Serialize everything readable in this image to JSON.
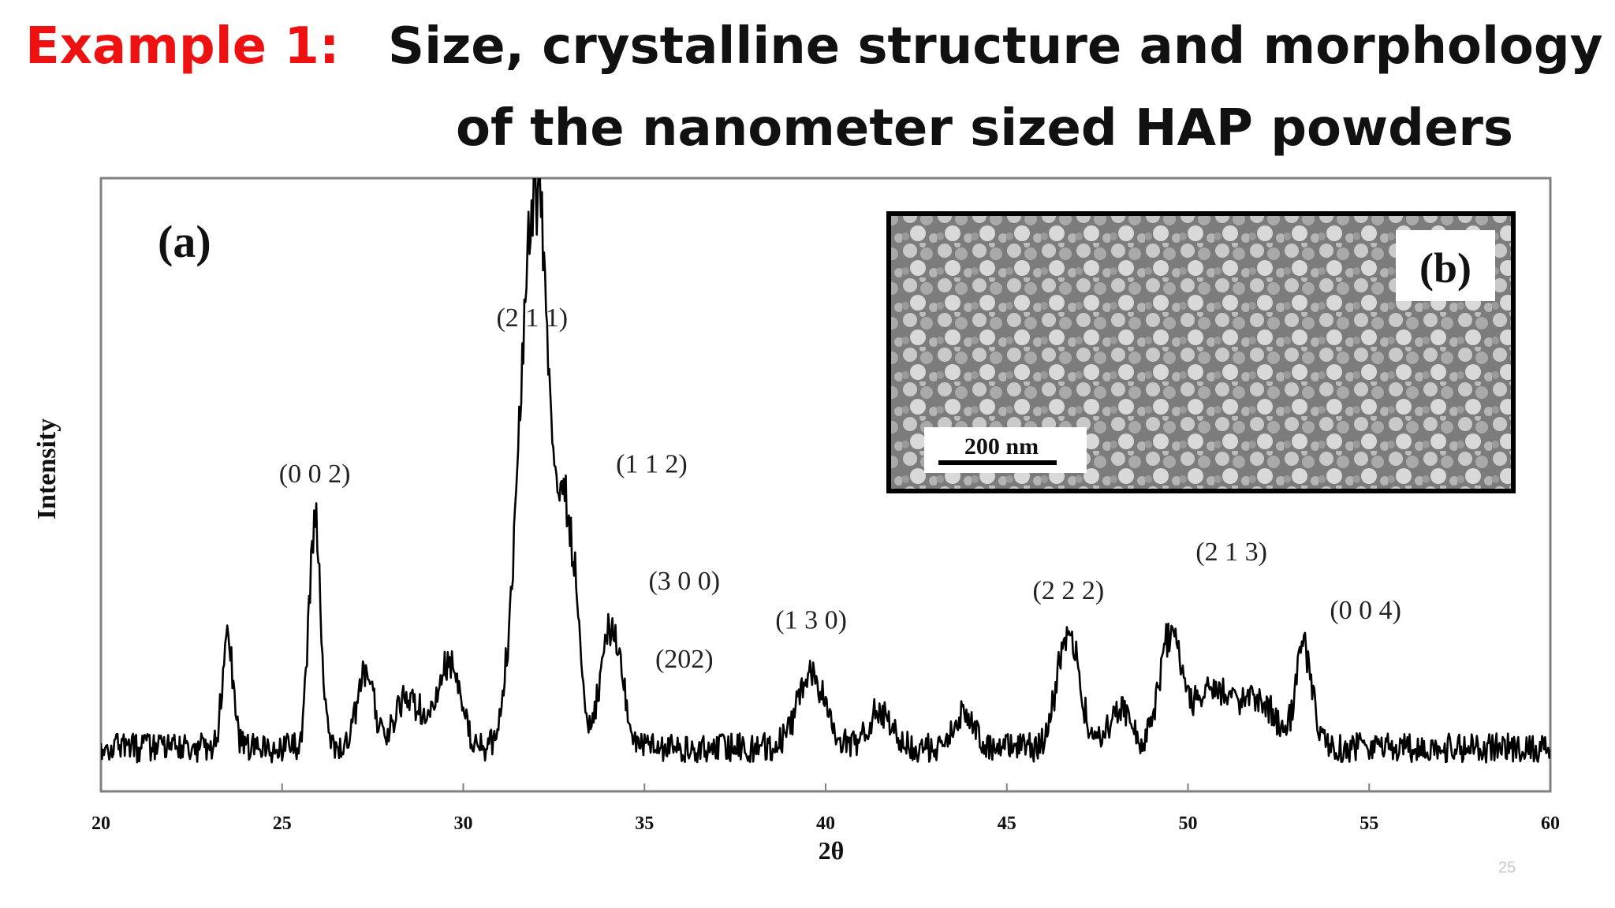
{
  "title": {
    "prefix": "Example 1:",
    "line1": "Size, crystalline structure and morphology",
    "line2": "of the nanometer sized HAP powders"
  },
  "colors": {
    "prefix": "#ee1111",
    "title": "#111111",
    "line": "#000000"
  },
  "slide_number": "25",
  "chart_data": {
    "type": "line",
    "panel_label": "(a)",
    "xlabel": "2θ",
    "ylabel": "Intensity",
    "xlim": [
      20,
      60
    ],
    "ylim": [
      0,
      100
    ],
    "x_ticks": [
      20,
      25,
      30,
      35,
      40,
      45,
      50,
      55,
      60
    ],
    "y_ticks": [],
    "grid": false,
    "baseline_noise": 3,
    "peaks": [
      {
        "x": 23.5,
        "height": 22,
        "width": 0.15
      },
      {
        "x": 25.9,
        "height": 47,
        "width": 0.16
      },
      {
        "x": 27.3,
        "height": 16,
        "width": 0.22
      },
      {
        "x": 28.5,
        "height": 10,
        "width": 0.4
      },
      {
        "x": 29.6,
        "height": 18,
        "width": 0.3
      },
      {
        "x": 31.8,
        "height": 80,
        "width": 0.35
      },
      {
        "x": 32.2,
        "height": 60,
        "width": 0.3
      },
      {
        "x": 32.9,
        "height": 45,
        "width": 0.25
      },
      {
        "x": 34.1,
        "height": 25,
        "width": 0.3
      },
      {
        "x": 39.6,
        "height": 14,
        "width": 0.4
      },
      {
        "x": 41.5,
        "height": 8,
        "width": 0.3
      },
      {
        "x": 43.8,
        "height": 7,
        "width": 0.3
      },
      {
        "x": 46.7,
        "height": 24,
        "width": 0.3
      },
      {
        "x": 48.1,
        "height": 8,
        "width": 0.3
      },
      {
        "x": 49.5,
        "height": 22,
        "width": 0.3
      },
      {
        "x": 50.5,
        "height": 9,
        "width": 0.5
      },
      {
        "x": 51.3,
        "height": 7,
        "width": 0.5
      },
      {
        "x": 52.1,
        "height": 7,
        "width": 0.4
      },
      {
        "x": 53.2,
        "height": 21,
        "width": 0.22
      }
    ],
    "annotations": [
      {
        "text": "(0 0 2)",
        "x": 25.9,
        "y": 56
      },
      {
        "text": "(2 1 1)",
        "x": 31.9,
        "y": 88
      },
      {
        "text": "(1 1 2)",
        "x": 35.2,
        "y": 58
      },
      {
        "text": "(3 0 0)",
        "x": 36.1,
        "y": 34
      },
      {
        "text": "(202)",
        "x": 36.1,
        "y": 18
      },
      {
        "text": "(1 3 0)",
        "x": 39.6,
        "y": 26
      },
      {
        "text": "(2 2 2)",
        "x": 46.7,
        "y": 32
      },
      {
        "text": "(2 1 3)",
        "x": 51.2,
        "y": 40
      },
      {
        "text": "(0 0 4)",
        "x": 54.9,
        "y": 28
      }
    ],
    "inset": {
      "panel_label": "(b)",
      "scale_bar_label": "200 nm"
    }
  }
}
